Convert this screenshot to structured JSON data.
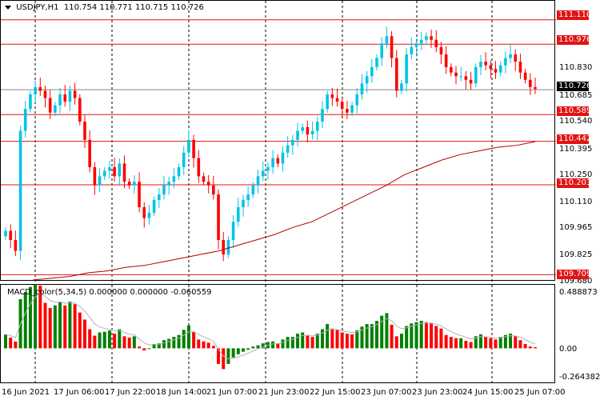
{
  "header": {
    "symbol": "USDJPY,H1",
    "open": "110.754",
    "high": "110.771",
    "low": "110.715",
    "close": "110.726"
  },
  "macd_header": {
    "name": "MACD_color(5,34,5)",
    "v1": "0.000000",
    "v2": "0.000000",
    "v3": "-0.060559"
  },
  "price_axis": [
    "110.830",
    "110.685",
    "110.540",
    "110.395",
    "110.250",
    "110.110",
    "109.965",
    "109.825",
    "109.680"
  ],
  "level_tags": [
    "111.110",
    "110.976",
    "110.589",
    "110.442",
    "110.203",
    "109.709"
  ],
  "current_price": "110.726",
  "macd_axis": [
    "0.488873",
    "0.00",
    "-0.264382"
  ],
  "time_axis": [
    "16 Jun 2021",
    "17 Jun 06:00",
    "17 Jun 22:00",
    "18 Jun 14:00",
    "21 Jun 07:00",
    "21 Jun 23:00",
    "22 Jun 15:00",
    "23 Jun 07:00",
    "23 Jun 23:00",
    "24 Jun 15:00",
    "25 Jun 07:00"
  ],
  "colors": {
    "bull": "#00c4e6",
    "bear": "#ff0000",
    "ma": "#b00000",
    "level": "#e21313",
    "macd_up": "#008000",
    "macd_down": "#ff0000",
    "signal": "#b4b4b4"
  },
  "chart_data": {
    "type": "candlestick",
    "price_range": [
      109.68,
      111.21
    ],
    "close_series": [
      109.95,
      109.9,
      109.84,
      110.5,
      110.62,
      110.7,
      110.74,
      110.72,
      110.68,
      110.6,
      110.64,
      110.7,
      110.66,
      110.72,
      110.68,
      110.55,
      110.45,
      110.3,
      110.2,
      110.25,
      110.28,
      110.3,
      110.25,
      110.32,
      110.22,
      110.2,
      110.22,
      110.08,
      110.02,
      110.05,
      110.12,
      110.15,
      110.2,
      110.22,
      110.25,
      110.3,
      110.38,
      110.45,
      110.35,
      110.25,
      110.22,
      110.2,
      110.15,
      109.9,
      109.82,
      109.9,
      110.0,
      110.08,
      110.12,
      110.15,
      110.2,
      110.25,
      110.28,
      110.3,
      110.35,
      110.32,
      110.38,
      110.42,
      110.45,
      110.5,
      110.52,
      110.48,
      110.5,
      110.55,
      110.62,
      110.7,
      110.68,
      110.66,
      110.62,
      110.6,
      110.64,
      110.7,
      110.76,
      110.8,
      110.85,
      110.9,
      110.98,
      111.02,
      110.9,
      110.72,
      110.76,
      110.92,
      110.96,
      110.98,
      111.0,
      111.02,
      111.0,
      110.96,
      110.92,
      110.85,
      110.82,
      110.8,
      110.8,
      110.78,
      110.76,
      110.85,
      110.88,
      110.86,
      110.84,
      110.82,
      110.86,
      110.9,
      110.92,
      110.88,
      110.82,
      110.78,
      110.74,
      110.73
    ],
    "ma_series": [
      109.68,
      109.69,
      109.7,
      109.72,
      109.73,
      109.75,
      109.76,
      109.78,
      109.8,
      109.82,
      109.84,
      109.87,
      109.9,
      109.93,
      109.97,
      110.0,
      110.05,
      110.1,
      110.15,
      110.2,
      110.26,
      110.3,
      110.34,
      110.37,
      110.39,
      110.41,
      110.42,
      110.44
    ],
    "macd_range": [
      -0.264382,
      0.488873
    ]
  }
}
